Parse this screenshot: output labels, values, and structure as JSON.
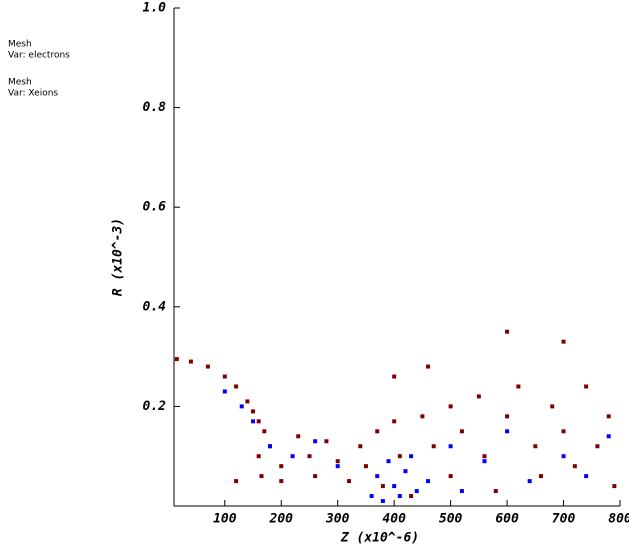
{
  "chart_data": {
    "type": "scatter",
    "xlabel": "Z  (x10^-6)",
    "ylabel": "R  (x10^-3)",
    "xlim": [
      10,
      800
    ],
    "ylim": [
      0,
      1
    ],
    "xticks": [
      100,
      200,
      300,
      400,
      500,
      600,
      700,
      800
    ],
    "yticks": [
      0.2,
      0.4,
      0.6,
      0.8,
      {
        "value": 1,
        "label": "1.0"
      }
    ],
    "series": [
      {
        "label": "Mesh",
        "name": "Var: electrons",
        "color": "#800000",
        "x": [
          15,
          40,
          70,
          100,
          120,
          140,
          150,
          160,
          170,
          160,
          165,
          180,
          200,
          200,
          230,
          250,
          260,
          280,
          300,
          320,
          340,
          350,
          370,
          380,
          400,
          410,
          430,
          450,
          470,
          500,
          500,
          520,
          550,
          560,
          580,
          600,
          600,
          620,
          650,
          660,
          680,
          700,
          700,
          720,
          740,
          760,
          780,
          790,
          120,
          400,
          460
        ],
        "values": [
          0.295,
          0.29,
          0.28,
          0.26,
          0.24,
          0.21,
          0.19,
          0.17,
          0.15,
          0.1,
          0.06,
          0.12,
          0.08,
          0.05,
          0.14,
          0.1,
          0.06,
          0.13,
          0.09,
          0.05,
          0.12,
          0.08,
          0.15,
          0.04,
          0.17,
          0.1,
          0.02,
          0.18,
          0.12,
          0.06,
          0.2,
          0.15,
          0.22,
          0.1,
          0.03,
          0.35,
          0.18,
          0.24,
          0.12,
          0.06,
          0.2,
          0.33,
          0.15,
          0.08,
          0.24,
          0.12,
          0.18,
          0.04,
          0.05,
          0.26,
          0.28
        ]
      },
      {
        "label": "Mesh",
        "name": "Var: Xeions",
        "color": "#0000ff",
        "x": [
          100,
          130,
          150,
          180,
          220,
          260,
          300,
          360,
          370,
          380,
          390,
          400,
          410,
          420,
          430,
          440,
          460,
          500,
          520,
          560,
          600,
          640,
          700,
          740,
          780
        ],
        "values": [
          0.23,
          0.2,
          0.17,
          0.12,
          0.1,
          0.13,
          0.08,
          0.02,
          0.06,
          0.01,
          0.09,
          0.04,
          0.02,
          0.07,
          0.1,
          0.03,
          0.05,
          0.12,
          0.03,
          0.09,
          0.15,
          0.05,
          0.1,
          0.06,
          0.14
        ]
      }
    ]
  }
}
